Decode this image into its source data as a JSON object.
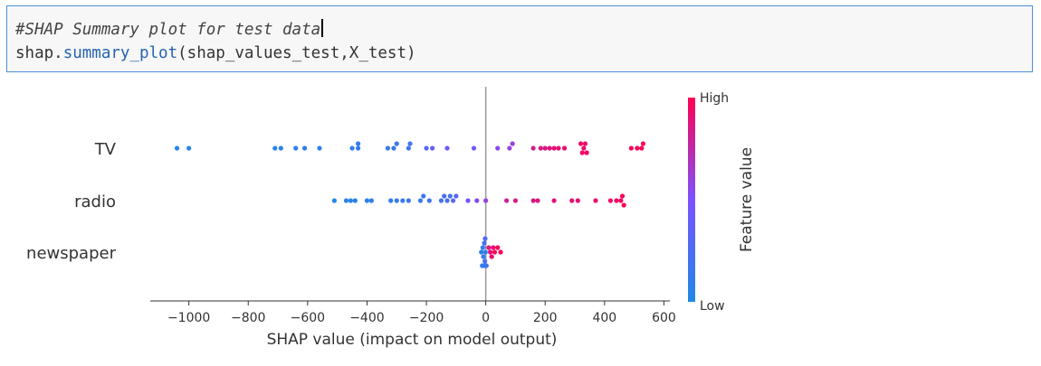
{
  "code_cell": {
    "comment": "#SHAP Summary plot for test data",
    "obj": "shap",
    "dot": ".",
    "func": "summary_plot",
    "args": "(shap_values_test,X_test)",
    "colors": {
      "func": "#2563ae",
      "comment": "#444444"
    }
  },
  "chart_data": {
    "type": "scatter",
    "xlabel": "SHAP value (impact on model output)",
    "xlim": [
      -1130,
      620
    ],
    "xticks": [
      -1000,
      -800,
      -600,
      -400,
      -200,
      0,
      200,
      400,
      600
    ],
    "tick_labels": [
      "−1000",
      "−800",
      "−600",
      "−400",
      "−200",
      "0",
      "200",
      "400",
      "600"
    ],
    "zero_line": true,
    "colorbar": {
      "label": "Feature value",
      "high": "High",
      "low": "Low",
      "colors": [
        "#1e88e5",
        "#7c52ff",
        "#ff0052"
      ]
    },
    "features": [
      {
        "name": "TV",
        "points": [
          {
            "x": -1040,
            "v": 0.02
          },
          {
            "x": -1000,
            "v": 0.03
          },
          {
            "x": -710,
            "v": 0.05
          },
          {
            "x": -690,
            "v": 0.06
          },
          {
            "x": -640,
            "v": 0.07
          },
          {
            "x": -610,
            "v": 0.08
          },
          {
            "x": -560,
            "v": 0.09
          },
          {
            "x": -450,
            "v": 0.1
          },
          {
            "x": -430,
            "v": 0.11
          },
          {
            "x": -430,
            "v": 0.12
          },
          {
            "x": -330,
            "v": 0.13
          },
          {
            "x": -310,
            "v": 0.14
          },
          {
            "x": -300,
            "v": 0.15
          },
          {
            "x": -260,
            "v": 0.17
          },
          {
            "x": -255,
            "v": 0.18
          },
          {
            "x": -200,
            "v": 0.3
          },
          {
            "x": -180,
            "v": 0.35
          },
          {
            "x": -130,
            "v": 0.42
          },
          {
            "x": -40,
            "v": 0.45
          },
          {
            "x": 40,
            "v": 0.55
          },
          {
            "x": 80,
            "v": 0.6
          },
          {
            "x": 90,
            "v": 0.62
          },
          {
            "x": 160,
            "v": 0.82
          },
          {
            "x": 185,
            "v": 0.85
          },
          {
            "x": 200,
            "v": 0.87
          },
          {
            "x": 215,
            "v": 0.88
          },
          {
            "x": 230,
            "v": 0.9
          },
          {
            "x": 245,
            "v": 0.91
          },
          {
            "x": 265,
            "v": 0.92
          },
          {
            "x": 330,
            "v": 0.93
          },
          {
            "x": 320,
            "v": 0.94
          },
          {
            "x": 335,
            "v": 0.95
          },
          {
            "x": 325,
            "v": 0.95
          },
          {
            "x": 340,
            "v": 0.96
          },
          {
            "x": 490,
            "v": 0.97
          },
          {
            "x": 510,
            "v": 0.98
          },
          {
            "x": 525,
            "v": 0.99
          },
          {
            "x": 530,
            "v": 1.0
          }
        ]
      },
      {
        "name": "radio",
        "points": [
          {
            "x": -510,
            "v": 0.03
          },
          {
            "x": -470,
            "v": 0.05
          },
          {
            "x": -455,
            "v": 0.06
          },
          {
            "x": -440,
            "v": 0.07
          },
          {
            "x": -400,
            "v": 0.08
          },
          {
            "x": -385,
            "v": 0.09
          },
          {
            "x": -320,
            "v": 0.1
          },
          {
            "x": -300,
            "v": 0.12
          },
          {
            "x": -280,
            "v": 0.14
          },
          {
            "x": -260,
            "v": 0.15
          },
          {
            "x": -220,
            "v": 0.16
          },
          {
            "x": -210,
            "v": 0.17
          },
          {
            "x": -190,
            "v": 0.18
          },
          {
            "x": -150,
            "v": 0.2
          },
          {
            "x": -140,
            "v": 0.22
          },
          {
            "x": -130,
            "v": 0.25
          },
          {
            "x": -120,
            "v": 0.2
          },
          {
            "x": -110,
            "v": 0.3
          },
          {
            "x": -100,
            "v": 0.32
          },
          {
            "x": -60,
            "v": 0.5
          },
          {
            "x": -30,
            "v": 0.55
          },
          {
            "x": 0,
            "v": 0.6
          },
          {
            "x": 70,
            "v": 0.8
          },
          {
            "x": 100,
            "v": 0.82
          },
          {
            "x": 160,
            "v": 0.85
          },
          {
            "x": 175,
            "v": 0.86
          },
          {
            "x": 230,
            "v": 0.88
          },
          {
            "x": 290,
            "v": 0.9
          },
          {
            "x": 310,
            "v": 0.91
          },
          {
            "x": 370,
            "v": 0.92
          },
          {
            "x": 420,
            "v": 0.94
          },
          {
            "x": 440,
            "v": 0.95
          },
          {
            "x": 455,
            "v": 0.97
          },
          {
            "x": 460,
            "v": 0.98
          },
          {
            "x": 465,
            "v": 1.0
          }
        ]
      },
      {
        "name": "newspaper",
        "points": [
          {
            "x": -15,
            "v": 0.05
          },
          {
            "x": -10,
            "v": 0.1
          },
          {
            "x": -8,
            "v": 0.15
          },
          {
            "x": -5,
            "v": 0.2
          },
          {
            "x": -3,
            "v": 0.25
          },
          {
            "x": -2,
            "v": 0.3
          },
          {
            "x": -1,
            "v": 0.1
          },
          {
            "x": 0,
            "v": 0.2
          },
          {
            "x": 2,
            "v": 0.3
          },
          {
            "x": -12,
            "v": 0.15
          },
          {
            "x": -6,
            "v": 0.25
          },
          {
            "x": -4,
            "v": 0.05
          },
          {
            "x": 10,
            "v": 0.85
          },
          {
            "x": 15,
            "v": 0.9
          },
          {
            "x": 20,
            "v": 0.92
          },
          {
            "x": 25,
            "v": 0.94
          },
          {
            "x": 30,
            "v": 0.96
          },
          {
            "x": 40,
            "v": 0.98
          },
          {
            "x": 50,
            "v": 1.0
          }
        ]
      }
    ]
  }
}
